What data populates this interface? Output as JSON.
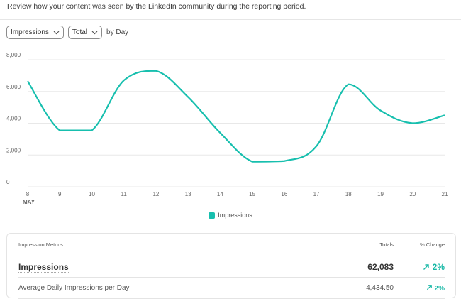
{
  "header": {
    "description": "Review how your content was seen by the LinkedIn community during the reporting period."
  },
  "controls": {
    "metric_dropdown": "Impressions",
    "aggregation_dropdown": "Total",
    "period_label": "by Day"
  },
  "colors": {
    "accent": "#17bfae",
    "grid": "#e8e8e8",
    "positive_change": "#17b8a6"
  },
  "chart_data": {
    "type": "line",
    "title": "",
    "xlabel": "MAY",
    "ylabel": "",
    "x": [
      "8",
      "9",
      "10",
      "11",
      "12",
      "13",
      "14",
      "15",
      "16",
      "17",
      "18",
      "19",
      "20",
      "21"
    ],
    "x_sublabel": "MAY",
    "series": [
      {
        "name": "Impressions",
        "color": "#17bfae",
        "values": [
          6650,
          3550,
          3550,
          6700,
          7300,
          5650,
          3400,
          1580,
          1620,
          2550,
          6450,
          4800,
          4000,
          4500
        ]
      }
    ],
    "yticks": [
      "0",
      "2,000",
      "4,000",
      "6,000",
      "8,000"
    ],
    "ylim": [
      0,
      8000
    ],
    "grid": true,
    "legend_position": "bottom"
  },
  "legend": {
    "label": "Impressions"
  },
  "metrics_table": {
    "headers": {
      "metric": "Impression Metrics",
      "totals": "Totals",
      "change": "% Change"
    },
    "rows": [
      {
        "metric": "Impressions",
        "total": "62,083",
        "change": "2%",
        "trend_icon": "arrow-up-right-icon"
      },
      {
        "metric": "Average Daily Impressions per Day",
        "total": "4,434.50",
        "change": "2%",
        "trend_icon": "arrow-up-right-icon"
      }
    ]
  }
}
